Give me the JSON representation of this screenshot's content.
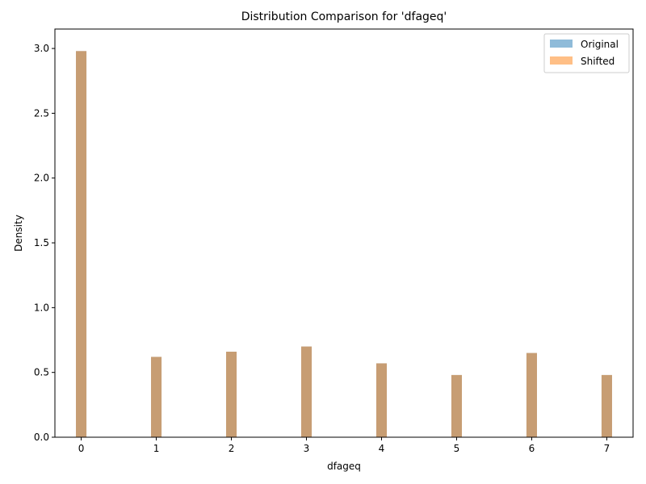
{
  "chart_data": {
    "type": "bar",
    "title": "Distribution Comparison for 'dfageq'",
    "xlabel": "dfageq",
    "ylabel": "Density",
    "xlim": [
      -0.35,
      7.35
    ],
    "ylim": [
      0,
      3.15
    ],
    "xticks": [
      0,
      1,
      2,
      3,
      4,
      5,
      6,
      7
    ],
    "yticks": [
      0.0,
      0.5,
      1.0,
      1.5,
      2.0,
      2.5,
      3.0
    ],
    "bar_width": 0.14,
    "grid": false,
    "legend_position": "top-right",
    "x": [
      0,
      1,
      2,
      3,
      4,
      5,
      6,
      7
    ],
    "series": [
      {
        "name": "Original",
        "color": "#1f77b4",
        "opacity": 0.5,
        "values": [
          2.98,
          0.62,
          0.66,
          0.7,
          0.57,
          0.48,
          0.65,
          0.48
        ]
      },
      {
        "name": "Shifted",
        "color": "#ff7f0e",
        "opacity": 0.5,
        "values": [
          2.98,
          0.62,
          0.66,
          0.7,
          0.57,
          0.48,
          0.65,
          0.48
        ]
      }
    ]
  }
}
